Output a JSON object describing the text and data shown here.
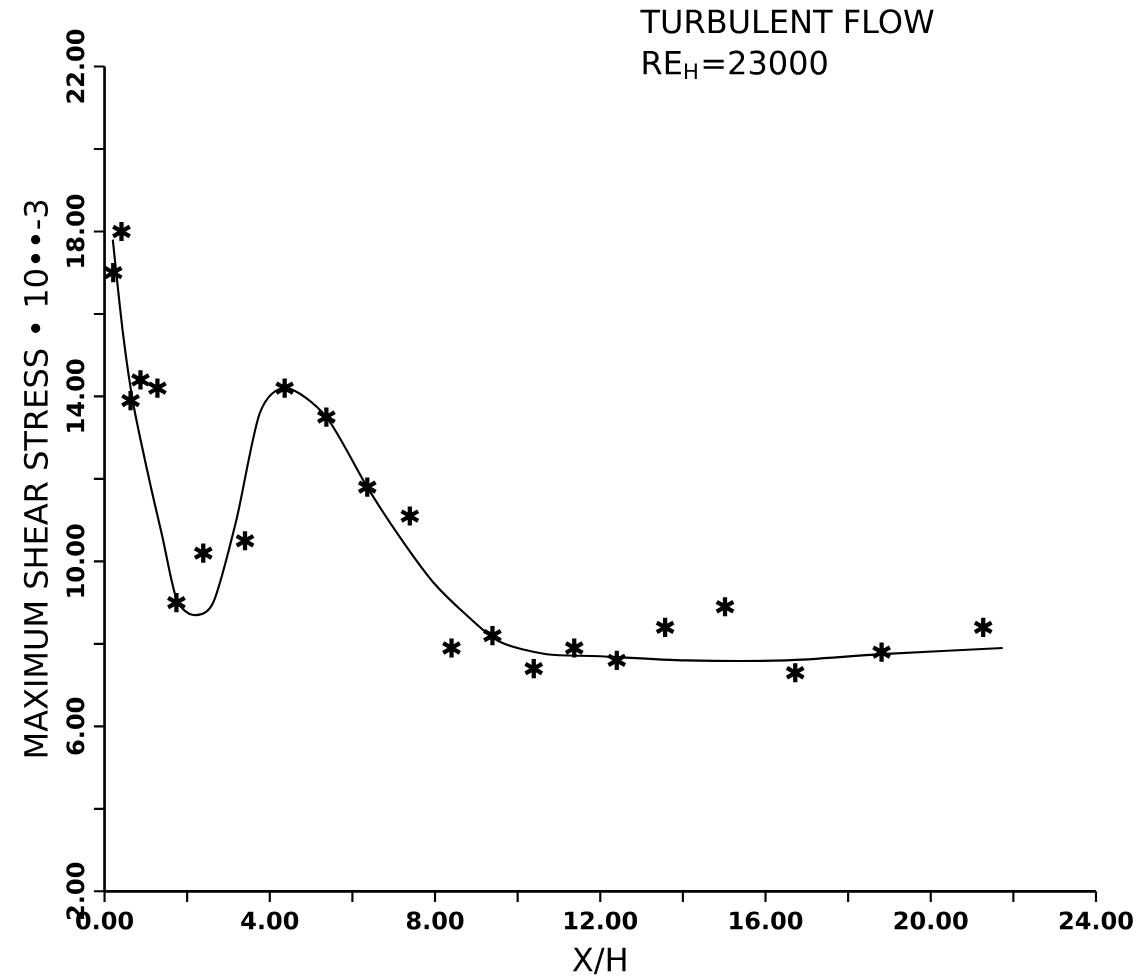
{
  "chart_data": {
    "type": "scatter",
    "xlabel": "X/H",
    "ylabel": "MAXIMUM SHEAR STRESS • 10••-3",
    "annotations": [
      "TURBULENT FLOW",
      "RE$_{H}$=23000"
    ],
    "xlim": [
      0,
      24
    ],
    "ylim": [
      2,
      22
    ],
    "xticks": [
      {
        "value": 0,
        "label": "0.00"
      },
      {
        "value": 2,
        "label": null
      },
      {
        "value": 4,
        "label": "4.00"
      },
      {
        "value": 6,
        "label": null
      },
      {
        "value": 8,
        "label": "8.00"
      },
      {
        "value": 10,
        "label": null
      },
      {
        "value": 12,
        "label": "12.00"
      },
      {
        "value": 14,
        "label": null
      },
      {
        "value": 16,
        "label": "16.00"
      },
      {
        "value": 18,
        "label": null
      },
      {
        "value": 20,
        "label": "20.00"
      },
      {
        "value": 22,
        "label": null
      },
      {
        "value": 24,
        "label": "24.00"
      }
    ],
    "yticks": [
      {
        "value": 2,
        "label": "2.00"
      },
      {
        "value": 4,
        "label": null
      },
      {
        "value": 6,
        "label": "6.00"
      },
      {
        "value": 8,
        "label": null
      },
      {
        "value": 10,
        "label": "10.00"
      },
      {
        "value": 12,
        "label": null
      },
      {
        "value": 14,
        "label": "14.00"
      },
      {
        "value": 16,
        "label": null
      },
      {
        "value": 18,
        "label": "18.00"
      },
      {
        "value": 20,
        "label": null
      },
      {
        "value": 22,
        "label": "22.00"
      }
    ],
    "grid": false,
    "series": [
      {
        "marker": "cross",
        "color": "#000000",
        "x": [
          0.21,
          0.41,
          0.63,
          0.87,
          1.28,
          1.74,
          2.39,
          3.4,
          4.36,
          5.37,
          6.36,
          7.39,
          8.4,
          9.39,
          10.39,
          11.37,
          12.4,
          13.57,
          15.02,
          16.72,
          18.81,
          21.27
        ],
        "values": [
          17.0,
          18.0,
          13.9,
          14.4,
          14.2,
          9.0,
          10.2,
          10.5,
          14.2,
          13.5,
          11.8,
          11.1,
          7.9,
          8.2,
          7.4,
          7.9,
          7.6,
          8.4,
          8.9,
          7.3,
          7.8,
          8.4
        ]
      },
      {
        "type": "line",
        "marker": "none",
        "line_style": "solid",
        "color": "#000000",
        "x": [
          0.2,
          0.45,
          0.7,
          1.1,
          1.4,
          1.74,
          2.15,
          2.63,
          3.19,
          3.76,
          4.4,
          5.37,
          6.36,
          7.14,
          7.95,
          8.76,
          9.57,
          10.7,
          12.0,
          14.08,
          16.5,
          18.81,
          21.74
        ],
        "values": [
          17.8,
          15.5,
          13.8,
          11.9,
          10.6,
          9.1,
          8.7,
          9.0,
          11.0,
          13.6,
          14.2,
          13.5,
          11.8,
          10.6,
          9.5,
          8.7,
          8.05,
          7.75,
          7.7,
          7.6,
          7.6,
          7.75,
          7.9
        ]
      }
    ]
  }
}
